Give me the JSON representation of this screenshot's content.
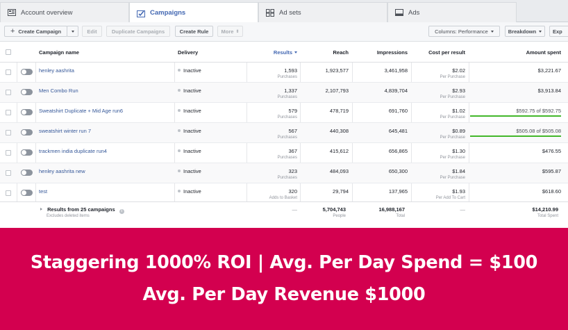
{
  "tabs": [
    {
      "label": "Account overview",
      "icon": "account-overview-icon"
    },
    {
      "label": "Campaigns",
      "icon": "campaigns-icon"
    },
    {
      "label": "Ad sets",
      "icon": "ad-sets-icon"
    },
    {
      "label": "Ads",
      "icon": "ads-icon"
    }
  ],
  "toolbar": {
    "create_campaign": "Create Campaign",
    "edit": "Edit",
    "duplicate": "Duplicate Campaigns",
    "create_rule": "Create Rule",
    "more": "More",
    "columns": "Columns: Performance",
    "breakdown": "Breakdown",
    "export": "Exp"
  },
  "columns": {
    "name": "Campaign name",
    "delivery": "Delivery",
    "results": "Results",
    "reach": "Reach",
    "impressions": "Impressions",
    "cost": "Cost per result",
    "amount": "Amount spent"
  },
  "rows": [
    {
      "name": "henley aashrita",
      "delivery": "Inactive",
      "results": "1,593",
      "results_type": "Purchases",
      "reach": "1,923,577",
      "impressions": "3,461,958",
      "cost": "$2.02",
      "cost_type": "Per Purchase",
      "amount": "$3,221.67",
      "budget_note": "",
      "budget_used": 0
    },
    {
      "name": "Men Combo Run",
      "delivery": "Inactive",
      "results": "1,337",
      "results_type": "Purchases",
      "reach": "2,107,793",
      "impressions": "4,839,704",
      "cost": "$2.93",
      "cost_type": "Per Purchase",
      "amount": "$3,913.84",
      "budget_note": "",
      "budget_used": 0
    },
    {
      "name": "Sweatshirt Duplicate + Mid Age run6",
      "delivery": "Inactive",
      "results": "579",
      "results_type": "Purchases",
      "reach": "478,719",
      "impressions": "691,760",
      "cost": "$1.02",
      "cost_type": "Per Purchase",
      "amount": "$592.75 of $592.75",
      "budget_note": "",
      "budget_used": 1
    },
    {
      "name": "sweatshirt winter run 7",
      "delivery": "Inactive",
      "results": "567",
      "results_type": "Purchases",
      "reach": "440,308",
      "impressions": "645,481",
      "cost": "$0.89",
      "cost_type": "Per Purchase",
      "amount": "$505.08 of $505.08",
      "budget_note": "",
      "budget_used": 1
    },
    {
      "name": "trackmen india duplicate run4",
      "delivery": "Inactive",
      "results": "367",
      "results_type": "Purchases",
      "reach": "415,612",
      "impressions": "656,865",
      "cost": "$1.30",
      "cost_type": "Per Purchase",
      "amount": "$476.55",
      "budget_note": "",
      "budget_used": 0
    },
    {
      "name": "henley aashrita new",
      "delivery": "Inactive",
      "results": "323",
      "results_type": "Purchases",
      "reach": "484,093",
      "impressions": "650,300",
      "cost": "$1.84",
      "cost_type": "Per Purchase",
      "amount": "$595.87",
      "budget_note": "",
      "budget_used": 0
    },
    {
      "name": "test",
      "delivery": "Inactive",
      "results": "320",
      "results_type": "Adds to Basket",
      "reach": "29,794",
      "impressions": "137,965",
      "cost": "$1.93",
      "cost_type": "Per Add To Cart",
      "amount": "$618.60",
      "budget_note": "",
      "budget_used": 0
    }
  ],
  "footer": {
    "label": "Results from 25 campaigns",
    "note": "Excludes deleted items",
    "results": "—",
    "reach": "5,704,743",
    "reach_type": "People",
    "impressions": "16,988,167",
    "impressions_type": "Total",
    "cost": "—",
    "amount": "$14,210.99",
    "amount_type": "Total Spent"
  },
  "banner": {
    "line1": "Staggering 1000% ROI | Avg. Per Day Spend  = $100",
    "line2": "Avg. Per Day Revenue $1000"
  },
  "colors": {
    "accent": "#4267b2",
    "banner": "#d3004f",
    "budget_bar": "#42b72a"
  }
}
